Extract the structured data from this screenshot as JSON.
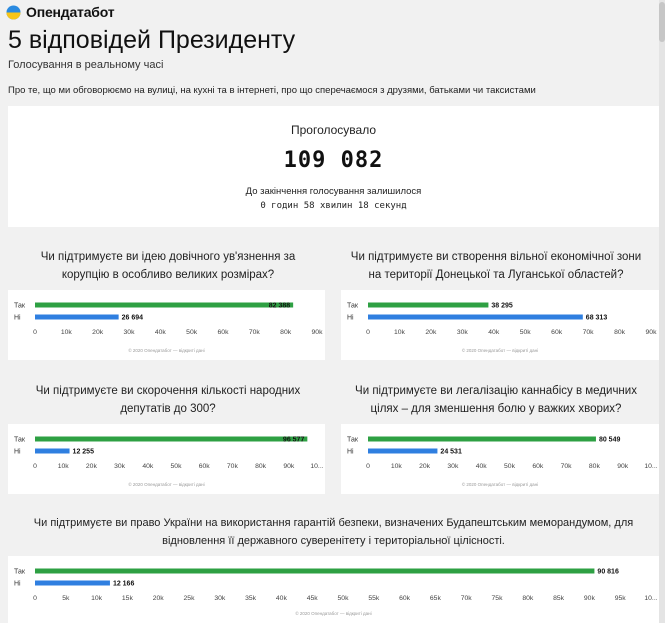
{
  "header": {
    "brand": "Опендатабот",
    "logo_icon": "opendatabot-logo-icon"
  },
  "page": {
    "title": "5 відповідей Президенту",
    "subtitle": "Голосування в реальному часі",
    "lead": "Про те, що ми обговорюємо на вулиці, на кухні та в інтернеті, про що сперечаємося з друзями, батьками чи таксистами"
  },
  "vote_summary": {
    "label": "Проголосувало",
    "total": "109 082",
    "remaining_label": "До закінчення голосування залишилося",
    "timer": "0 годин 58 хвилин 18 секунд"
  },
  "questions": [
    {
      "lines": [
        "Чи підтримуєте ви ідею довічного ув'язнення за",
        "корупцію в особливо великих розмірах?"
      ]
    },
    {
      "lines": [
        "Чи підтримуєте ви створення вільної економічної зони",
        "на території Донецької та Луганської областей?"
      ]
    },
    {
      "lines": [
        "Чи підтримуєте ви скорочення кількості народних",
        "депутатів до 300?"
      ]
    },
    {
      "lines": [
        "Чи підтримуєте ви легалізацію каннабісу в медичних",
        "цілях – для зменшення болю у важких хворих?"
      ]
    },
    {
      "lines": [
        "Чи підтримуєте ви право України на використання гарантій безпеки, визначених Будапештським меморандумом, для",
        "відновлення її державного суверенітету і територіальної цілісності."
      ]
    }
  ],
  "colors": {
    "yes": "#2ea043",
    "no": "#2f7fe0",
    "logo_blue": "#2a8ae0",
    "logo_yellow": "#f7c518"
  },
  "chart_data": [
    {
      "type": "bar",
      "categories": [
        "Так",
        "Ні"
      ],
      "values": [
        82388,
        26694
      ],
      "value_labels": [
        "82 388",
        "26 694"
      ],
      "xlim": [
        0,
        90000
      ],
      "ticks": [
        "0",
        "10k",
        "20k",
        "30k",
        "40k",
        "50k",
        "60k",
        "70k",
        "80k",
        "90k"
      ],
      "credit": "© 2020 Опендатабот — відкриті дані"
    },
    {
      "type": "bar",
      "categories": [
        "Так",
        "Ні"
      ],
      "values": [
        38295,
        68313
      ],
      "value_labels": [
        "38 295",
        "68 313"
      ],
      "xlim": [
        0,
        90000
      ],
      "ticks": [
        "0",
        "10k",
        "20k",
        "30k",
        "40k",
        "50k",
        "60k",
        "70k",
        "80k",
        "90k"
      ],
      "credit": "© 2020 Опендатабот — відкриті дані"
    },
    {
      "type": "bar",
      "categories": [
        "Так",
        "Ні"
      ],
      "values": [
        96577,
        12255
      ],
      "value_labels": [
        "96 577",
        "12 255"
      ],
      "xlim": [
        0,
        100000
      ],
      "ticks": [
        "0",
        "10k",
        "20k",
        "30k",
        "40k",
        "50k",
        "60k",
        "70k",
        "80k",
        "90k",
        "10..."
      ],
      "credit": "© 2020 Опендатабот — відкриті дані"
    },
    {
      "type": "bar",
      "categories": [
        "Так",
        "Ні"
      ],
      "values": [
        80549,
        24531
      ],
      "value_labels": [
        "80 549",
        "24 531"
      ],
      "xlim": [
        0,
        100000
      ],
      "ticks": [
        "0",
        "10k",
        "20k",
        "30k",
        "40k",
        "50k",
        "60k",
        "70k",
        "80k",
        "90k",
        "10..."
      ],
      "credit": "© 2020 Опендатабот — відкриті дані"
    },
    {
      "type": "bar",
      "categories": [
        "Так",
        "Ні"
      ],
      "values": [
        90816,
        12166
      ],
      "value_labels": [
        "90 816",
        "12 166"
      ],
      "xlim": [
        0,
        100000
      ],
      "ticks": [
        "0",
        "5k",
        "10k",
        "15k",
        "20k",
        "25k",
        "30k",
        "35k",
        "40k",
        "45k",
        "50k",
        "55k",
        "60k",
        "65k",
        "70k",
        "75k",
        "80k",
        "85k",
        "90k",
        "95k",
        "10..."
      ],
      "credit": "© 2020 Опендатабот — відкриті дані"
    }
  ]
}
